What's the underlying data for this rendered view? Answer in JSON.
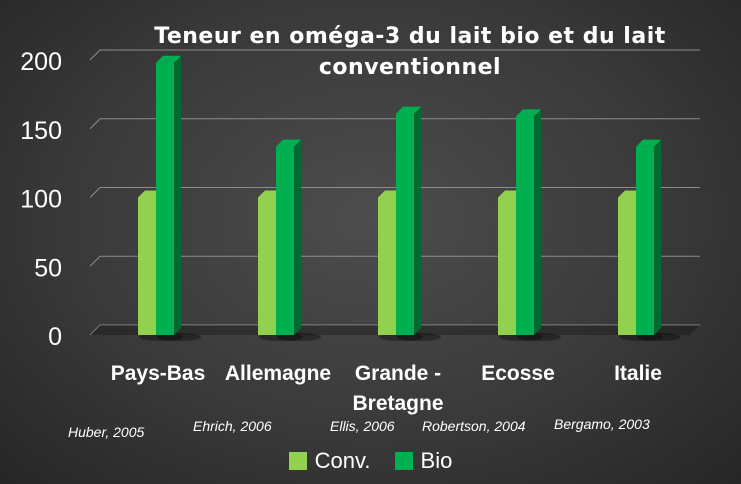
{
  "chart_data": {
    "type": "bar",
    "title_lines": [
      "Teneur en oméga-3 du lait bio et du lait",
      "conventionnel"
    ],
    "categories": [
      "Pays-Bas",
      "Allemagne",
      "Grande - Bretagne",
      "Ecosse",
      "Italie"
    ],
    "category_label_lines": [
      [
        "Pays-Bas"
      ],
      [
        "Allemagne"
      ],
      [
        "Grande -",
        "Bretagne"
      ],
      [
        "Ecosse"
      ],
      [
        "Italie"
      ]
    ],
    "sources": [
      "Huber, 2005",
      "Ehrich, 2006",
      "Ellis, 2006",
      "Robertson, 2004",
      "Bergamo, 2003"
    ],
    "series": [
      {
        "name": "Conv.",
        "values": [
          100,
          100,
          100,
          100,
          100
        ],
        "color": "#92d050"
      },
      {
        "name": "Bio",
        "values": [
          198,
          137,
          161,
          159,
          137
        ],
        "color": "#00b050"
      }
    ],
    "ylim": [
      0,
      200
    ],
    "yticks": [
      "0",
      "50",
      "100",
      "150",
      "200"
    ],
    "grid": true,
    "legend_position": "bottom"
  }
}
